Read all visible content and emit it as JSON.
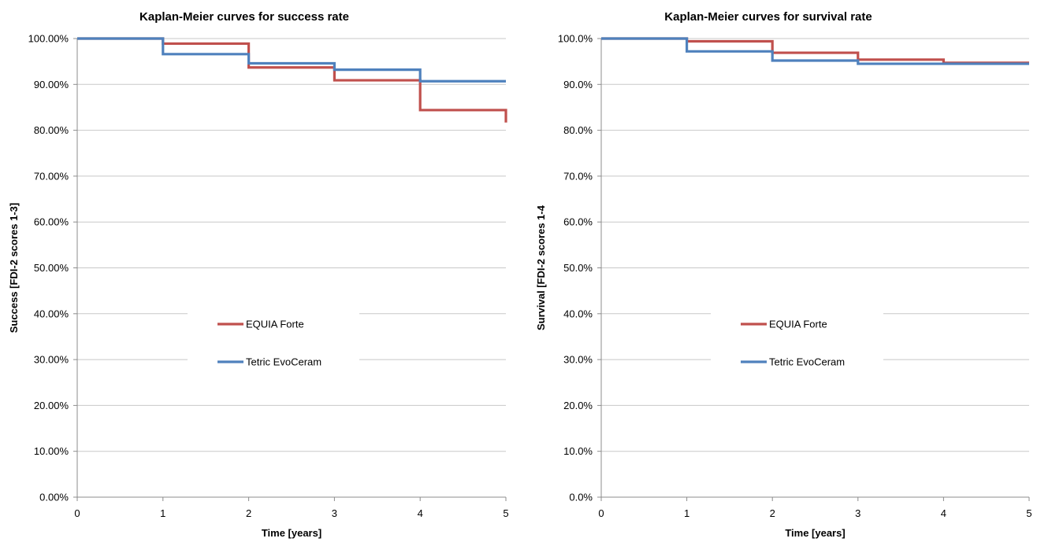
{
  "chart_data": [
    {
      "type": "line",
      "step": true,
      "title": "Kaplan-Meier curves for success rate",
      "xlabel": "Time [years]",
      "ylabel": "Success [FDI-2 scores 1-3]",
      "xlim": [
        0,
        5
      ],
      "ylim": [
        0,
        100
      ],
      "x_ticks": [
        "0",
        "1",
        "2",
        "3",
        "4",
        "5"
      ],
      "y_ticks": [
        "0.00%",
        "10.00%",
        "20.00%",
        "30.00%",
        "40.00%",
        "50.00%",
        "60.00%",
        "70.00%",
        "80.00%",
        "90.00%",
        "100.00%"
      ],
      "grid": true,
      "legend_position": "center",
      "series": [
        {
          "name": "EQUIA Forte",
          "color": "#c0504d",
          "points": [
            [
              0,
              100
            ],
            [
              1,
              98.9
            ],
            [
              2,
              93.7
            ],
            [
              3,
              90.9
            ],
            [
              4,
              84.4
            ],
            [
              5,
              81.7
            ]
          ]
        },
        {
          "name": "Tetric EvoCeram",
          "color": "#4f81bd",
          "points": [
            [
              0,
              100
            ],
            [
              1,
              96.6
            ],
            [
              2,
              94.6
            ],
            [
              3,
              93.2
            ],
            [
              4,
              90.7
            ],
            [
              5,
              90.7
            ]
          ]
        }
      ]
    },
    {
      "type": "line",
      "step": true,
      "title": "Kaplan-Meier curves for survival rate",
      "xlabel": "Time [years]",
      "ylabel": "Survival [FDI-2 scores 1-4",
      "xlim": [
        0,
        5
      ],
      "ylim": [
        0,
        100
      ],
      "x_ticks": [
        "0",
        "1",
        "2",
        "3",
        "4",
        "5"
      ],
      "y_ticks": [
        "0.0%",
        "10.0%",
        "20.0%",
        "30.0%",
        "40.0%",
        "50.0%",
        "60.0%",
        "70.0%",
        "80.0%",
        "90.0%",
        "100.0%"
      ],
      "grid": true,
      "legend_position": "center",
      "series": [
        {
          "name": "EQUIA Forte",
          "color": "#c0504d",
          "points": [
            [
              0,
              100
            ],
            [
              1,
              99.4
            ],
            [
              2,
              96.9
            ],
            [
              3,
              95.4
            ],
            [
              4,
              94.7
            ],
            [
              5,
              94.7
            ]
          ]
        },
        {
          "name": "Tetric EvoCeram",
          "color": "#4f81bd",
          "points": [
            [
              0,
              100
            ],
            [
              1,
              97.2
            ],
            [
              2,
              95.2
            ],
            [
              3,
              94.5
            ],
            [
              4,
              94.5
            ],
            [
              5,
              94.5
            ]
          ]
        }
      ]
    }
  ]
}
